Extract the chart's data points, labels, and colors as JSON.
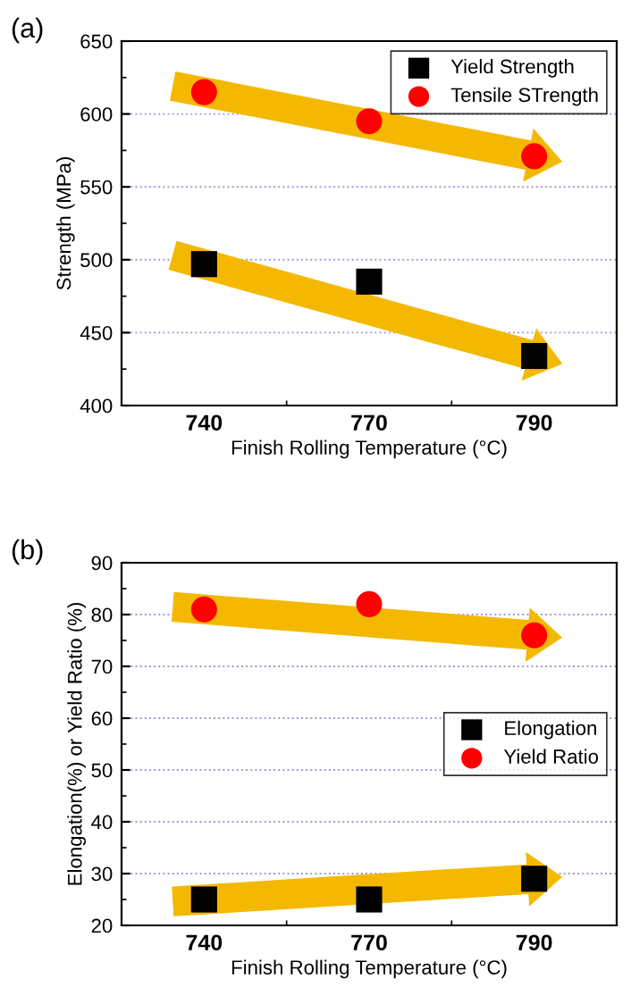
{
  "chart_data": [
    {
      "type": "scatter",
      "annotations": [
        "(a)"
      ],
      "xlabel": "Finish Rolling Temperature (°C)",
      "ylabel": "Strength (MPa)",
      "categories": [
        "740",
        "770",
        "790"
      ],
      "ylim": [
        400,
        650
      ],
      "yticks": [
        400,
        450,
        500,
        550,
        600,
        650
      ],
      "grid": "y",
      "legend": "top right",
      "series": [
        {
          "name": "Yield Strength",
          "color": "#000000",
          "marker": "square",
          "values": [
            497,
            485,
            434
          ]
        },
        {
          "name": "Tensile STrength",
          "color": "#ff0000",
          "marker": "circle",
          "values": [
            615,
            595,
            571
          ]
        }
      ]
    },
    {
      "type": "scatter",
      "annotations": [
        "(b)"
      ],
      "xlabel": "Finish Rolling Temperature (°C)",
      "ylabel": "Elongation(%) or Yield Ratio (%)",
      "categories": [
        "740",
        "770",
        "790"
      ],
      "ylim": [
        20,
        90
      ],
      "yticks": [
        20,
        30,
        40,
        50,
        60,
        70,
        80,
        90
      ],
      "grid": "y",
      "legend": "right",
      "series": [
        {
          "name": "Elongation",
          "color": "#000000",
          "marker": "square",
          "values": [
            25,
            25,
            29
          ]
        },
        {
          "name": "Yield Ratio",
          "color": "#ff0000",
          "marker": "circle",
          "values": [
            81,
            82,
            76
          ]
        }
      ]
    }
  ]
}
